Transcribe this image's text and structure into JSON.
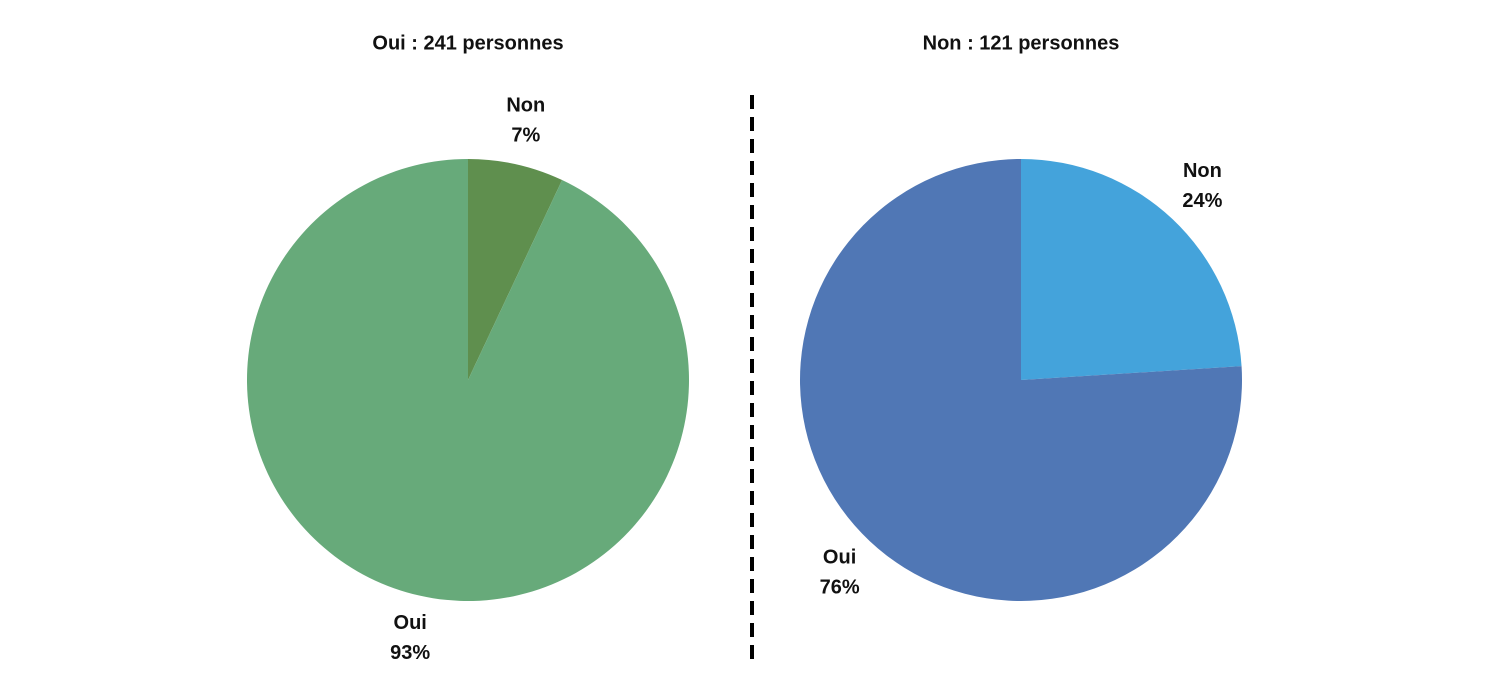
{
  "chart_data": [
    {
      "type": "pie",
      "title": "Oui : 241 personnes",
      "categories": [
        "Non",
        "Oui"
      ],
      "values": [
        7,
        93
      ],
      "value_labels": [
        "7%",
        "93%"
      ],
      "colors": [
        "#5f8f4e",
        "#67aa7a"
      ]
    },
    {
      "type": "pie",
      "title": "Non : 121 personnes",
      "categories": [
        "Non",
        "Oui"
      ],
      "values": [
        24,
        76
      ],
      "value_labels": [
        "24%",
        "76%"
      ],
      "colors": [
        "#44a3db",
        "#5077b5"
      ]
    }
  ]
}
